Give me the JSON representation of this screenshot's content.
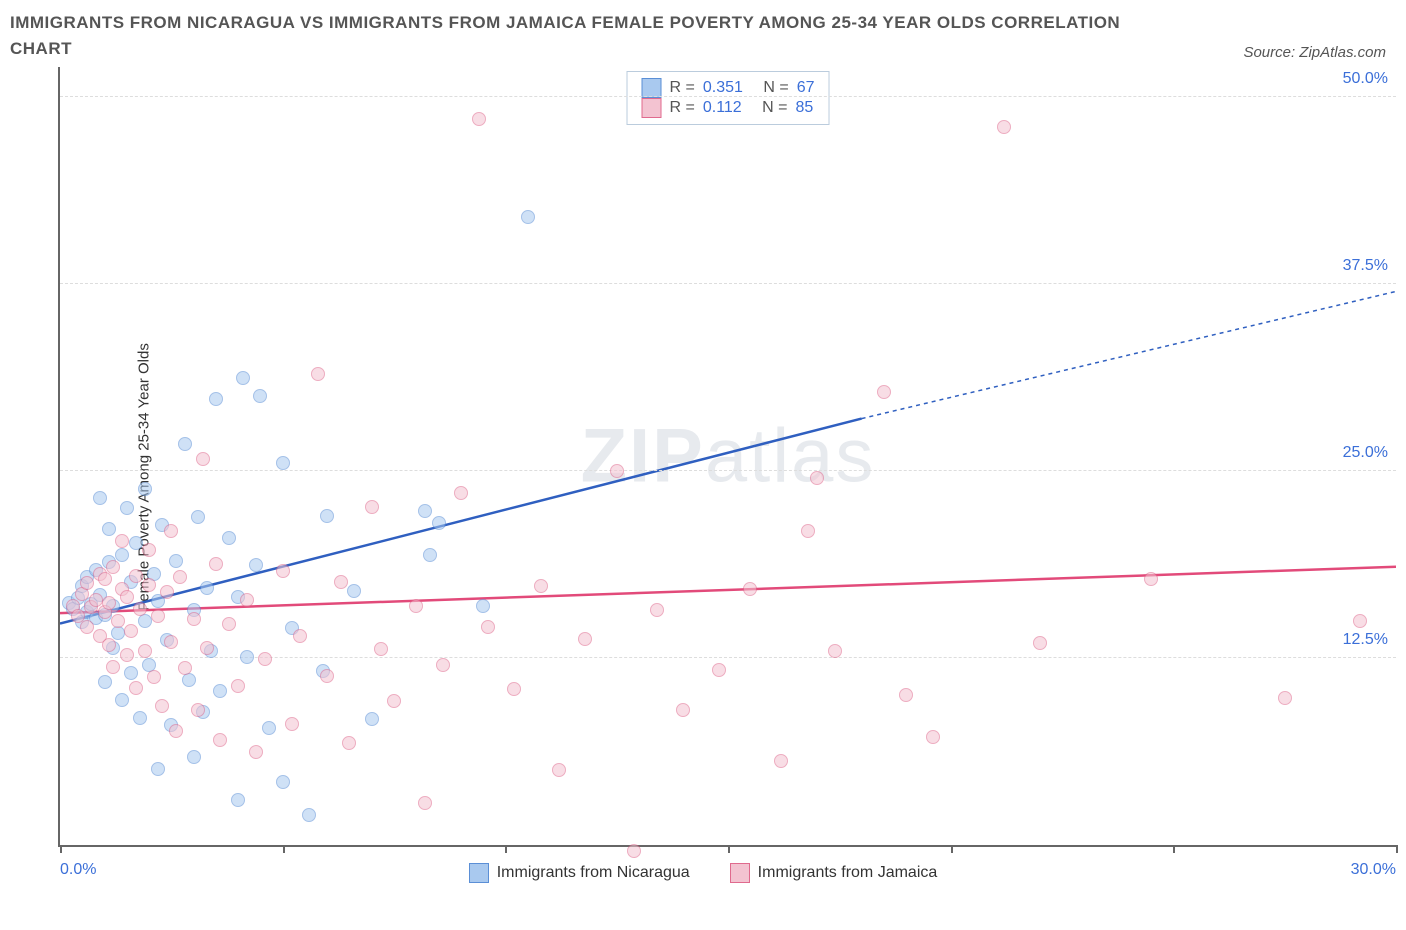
{
  "title": "IMMIGRANTS FROM NICARAGUA VS IMMIGRANTS FROM JAMAICA FEMALE POVERTY AMONG 25-34 YEAR OLDS CORRELATION CHART",
  "source": "Source: ZipAtlas.com",
  "ylabel": "Female Poverty Among 25-34 Year Olds",
  "watermark": {
    "bold": "ZIP",
    "light": "atlas"
  },
  "chart": {
    "type": "scatter",
    "xlim": [
      0,
      30
    ],
    "ylim": [
      0,
      52
    ],
    "x_ticks": [
      0,
      5,
      10,
      15,
      20,
      25,
      30
    ],
    "x_tick_labels": {
      "0": "0.0%",
      "30": "30.0%"
    },
    "y_ticks": [
      12.5,
      25.0,
      37.5,
      50.0
    ],
    "y_tick_labels": [
      "12.5%",
      "25.0%",
      "37.5%",
      "50.0%"
    ],
    "grid_color": "#dddddd",
    "axis_color": "#666666",
    "background_color": "#ffffff",
    "tick_label_color": "#3b6fd8",
    "marker_radius": 7,
    "marker_opacity": 0.55,
    "series": [
      {
        "name": "Immigrants from Nicaragua",
        "color_fill": "#a9c9ef",
        "color_stroke": "#5b8fd6",
        "trend_color": "#2f5fc0",
        "R": "0.351",
        "N": "67",
        "trend": {
          "x1": 0,
          "y1": 14.8,
          "x2_solid": 18,
          "y2_solid": 28.5,
          "x2_dash": 30,
          "y2_dash": 37.0
        },
        "points": [
          [
            0.2,
            16.2
          ],
          [
            0.3,
            15.8
          ],
          [
            0.4,
            16.5
          ],
          [
            0.5,
            14.9
          ],
          [
            0.5,
            17.3
          ],
          [
            0.6,
            15.6
          ],
          [
            0.6,
            17.9
          ],
          [
            0.7,
            16.1
          ],
          [
            0.8,
            15.2
          ],
          [
            0.8,
            18.4
          ],
          [
            0.9,
            16.7
          ],
          [
            0.9,
            23.2
          ],
          [
            1.0,
            10.9
          ],
          [
            1.0,
            15.4
          ],
          [
            1.1,
            18.9
          ],
          [
            1.1,
            21.1
          ],
          [
            1.2,
            13.2
          ],
          [
            1.2,
            16.0
          ],
          [
            1.3,
            14.2
          ],
          [
            1.4,
            19.4
          ],
          [
            1.4,
            9.7
          ],
          [
            1.5,
            22.5
          ],
          [
            1.6,
            11.5
          ],
          [
            1.6,
            17.6
          ],
          [
            1.7,
            20.2
          ],
          [
            1.8,
            8.5
          ],
          [
            1.9,
            15.0
          ],
          [
            1.9,
            23.8
          ],
          [
            2.0,
            12.0
          ],
          [
            2.1,
            18.1
          ],
          [
            2.2,
            5.1
          ],
          [
            2.2,
            16.3
          ],
          [
            2.3,
            21.4
          ],
          [
            2.4,
            13.7
          ],
          [
            2.5,
            8.0
          ],
          [
            2.6,
            19.0
          ],
          [
            2.8,
            26.8
          ],
          [
            2.9,
            11.0
          ],
          [
            3.0,
            15.7
          ],
          [
            3.0,
            5.9
          ],
          [
            3.1,
            21.9
          ],
          [
            3.2,
            8.9
          ],
          [
            3.3,
            17.2
          ],
          [
            3.4,
            13.0
          ],
          [
            3.5,
            29.8
          ],
          [
            3.6,
            10.3
          ],
          [
            3.8,
            20.5
          ],
          [
            4.0,
            16.6
          ],
          [
            4.0,
            3.0
          ],
          [
            4.1,
            31.2
          ],
          [
            4.2,
            12.6
          ],
          [
            4.4,
            18.7
          ],
          [
            4.5,
            30.0
          ],
          [
            4.7,
            7.8
          ],
          [
            5.0,
            4.2
          ],
          [
            5.0,
            25.5
          ],
          [
            5.2,
            14.5
          ],
          [
            5.6,
            2.0
          ],
          [
            5.9,
            11.6
          ],
          [
            6.0,
            22.0
          ],
          [
            6.6,
            17.0
          ],
          [
            7.0,
            8.4
          ],
          [
            8.2,
            22.3
          ],
          [
            8.3,
            19.4
          ],
          [
            8.5,
            21.5
          ],
          [
            9.5,
            16.0
          ],
          [
            10.5,
            42.0
          ]
        ]
      },
      {
        "name": "Immigrants from Jamaica",
        "color_fill": "#f3c3d1",
        "color_stroke": "#e06a8e",
        "trend_color": "#e24a7a",
        "R": "0.112",
        "N": "85",
        "trend": {
          "x1": 0,
          "y1": 15.5,
          "x2_solid": 30,
          "y2_solid": 18.6,
          "x2_dash": 30,
          "y2_dash": 18.6
        },
        "points": [
          [
            0.3,
            16.0
          ],
          [
            0.4,
            15.3
          ],
          [
            0.5,
            16.8
          ],
          [
            0.6,
            14.6
          ],
          [
            0.6,
            17.5
          ],
          [
            0.7,
            15.9
          ],
          [
            0.8,
            16.4
          ],
          [
            0.9,
            18.1
          ],
          [
            0.9,
            14.0
          ],
          [
            1.0,
            15.6
          ],
          [
            1.0,
            17.8
          ],
          [
            1.1,
            13.4
          ],
          [
            1.1,
            16.2
          ],
          [
            1.2,
            18.6
          ],
          [
            1.2,
            11.9
          ],
          [
            1.3,
            15.0
          ],
          [
            1.4,
            17.1
          ],
          [
            1.4,
            20.3
          ],
          [
            1.5,
            12.7
          ],
          [
            1.5,
            16.6
          ],
          [
            1.6,
            14.3
          ],
          [
            1.7,
            18.0
          ],
          [
            1.7,
            10.5
          ],
          [
            1.8,
            15.8
          ],
          [
            1.9,
            13.0
          ],
          [
            2.0,
            17.4
          ],
          [
            2.0,
            19.7
          ],
          [
            2.1,
            11.2
          ],
          [
            2.2,
            15.3
          ],
          [
            2.3,
            9.3
          ],
          [
            2.4,
            16.9
          ],
          [
            2.5,
            13.6
          ],
          [
            2.5,
            21.0
          ],
          [
            2.6,
            7.6
          ],
          [
            2.7,
            17.9
          ],
          [
            2.8,
            11.8
          ],
          [
            3.0,
            15.1
          ],
          [
            3.1,
            9.0
          ],
          [
            3.2,
            25.8
          ],
          [
            3.3,
            13.2
          ],
          [
            3.5,
            18.8
          ],
          [
            3.6,
            7.0
          ],
          [
            3.8,
            14.8
          ],
          [
            4.0,
            10.6
          ],
          [
            4.2,
            16.4
          ],
          [
            4.4,
            6.2
          ],
          [
            4.6,
            12.4
          ],
          [
            5.0,
            18.3
          ],
          [
            5.2,
            8.1
          ],
          [
            5.4,
            14.0
          ],
          [
            5.8,
            31.5
          ],
          [
            6.0,
            11.3
          ],
          [
            6.3,
            17.6
          ],
          [
            6.5,
            6.8
          ],
          [
            7.0,
            22.6
          ],
          [
            7.2,
            13.1
          ],
          [
            7.5,
            9.6
          ],
          [
            8.0,
            16.0
          ],
          [
            8.2,
            2.8
          ],
          [
            8.6,
            12.0
          ],
          [
            9.0,
            23.5
          ],
          [
            9.4,
            48.5
          ],
          [
            9.6,
            14.6
          ],
          [
            10.2,
            10.4
          ],
          [
            10.8,
            17.3
          ],
          [
            11.2,
            5.0
          ],
          [
            11.8,
            13.8
          ],
          [
            12.5,
            25.0
          ],
          [
            12.9,
            -0.4
          ],
          [
            13.4,
            15.7
          ],
          [
            14.0,
            9.0
          ],
          [
            14.8,
            11.7
          ],
          [
            15.5,
            17.1
          ],
          [
            16.2,
            5.6
          ],
          [
            16.8,
            21.0
          ],
          [
            17.0,
            24.5
          ],
          [
            17.4,
            13.0
          ],
          [
            18.5,
            30.3
          ],
          [
            19.0,
            10.0
          ],
          [
            19.6,
            7.2
          ],
          [
            21.2,
            48.0
          ],
          [
            22.0,
            13.5
          ],
          [
            24.5,
            17.8
          ],
          [
            27.5,
            9.8
          ],
          [
            29.2,
            15.0
          ]
        ]
      }
    ]
  }
}
